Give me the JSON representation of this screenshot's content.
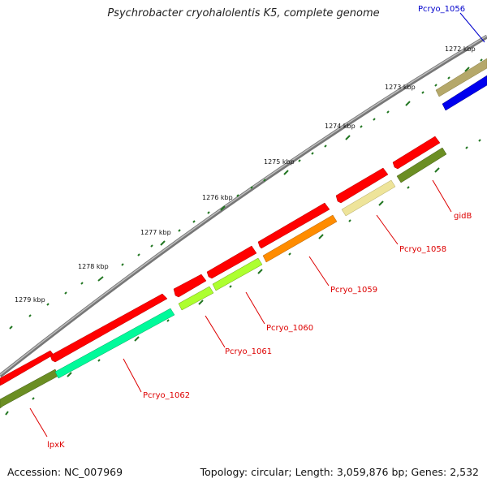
{
  "title": "Psychrobacter cryohalolentis K5, complete genome",
  "footer": {
    "accession": "Accession: NC_007969",
    "summary": "Topology: circular; Length: 3,059,876 bp; Genes: 2,532"
  },
  "ticks": [
    {
      "label": "1272 kbp",
      "kbp": 1272
    },
    {
      "label": "1273 kbp",
      "kbp": 1273
    },
    {
      "label": "1274 kbp",
      "kbp": 1274
    },
    {
      "label": "1275 kbp",
      "kbp": 1275
    },
    {
      "label": "1276 kbp",
      "kbp": 1276
    },
    {
      "label": "1277 kbp",
      "kbp": 1277
    },
    {
      "label": "1278 kbp",
      "kbp": 1278
    },
    {
      "label": "1279 kbp",
      "kbp": 1279
    }
  ],
  "genes": [
    {
      "label": "Pcryo_1056",
      "color": "#0000cc"
    },
    {
      "label": "gidB",
      "color": "#dd0000"
    },
    {
      "label": "Pcryo_1058",
      "color": "#dd0000"
    },
    {
      "label": "Pcryo_1059",
      "color": "#dd0000"
    },
    {
      "label": "Pcryo_1060",
      "color": "#dd0000"
    },
    {
      "label": "Pcryo_1061",
      "color": "#dd0000"
    },
    {
      "label": "Pcryo_1062",
      "color": "#dd0000"
    },
    {
      "label": "lpxK",
      "color": "#dd0000"
    }
  ],
  "colors": {
    "backbone": "#8c8c8c",
    "cds": "#ff0000",
    "tick": "#227722",
    "gene_1056": "#0000ee",
    "gene_1056_upper": "#b5a86a",
    "gene_gidB": "#6b8e23",
    "gene_1058": "#eee49a",
    "gene_1059": "#ff8c00",
    "gene_1060": "#adff2f",
    "gene_1061": "#adff2f",
    "gene_1062": "#00fa9a",
    "gene_lpxK": "#6b8e23"
  }
}
